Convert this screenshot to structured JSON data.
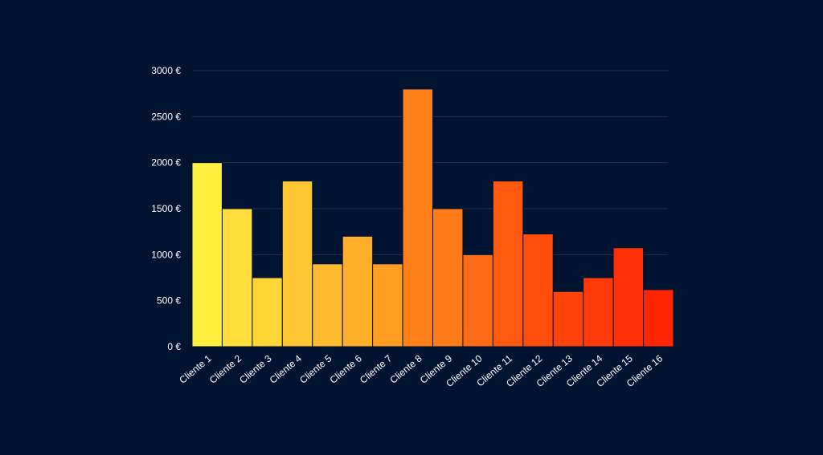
{
  "colors": {
    "background": "#001330",
    "gridline": "#1f3350",
    "text": "#ffffff",
    "bar_border": "#001330"
  },
  "chart_data": {
    "type": "bar",
    "title": "",
    "xlabel": "",
    "ylabel": "",
    "ylim": [
      0,
      3000
    ],
    "yticks": [
      0,
      500,
      1000,
      1500,
      2000,
      2500,
      3000
    ],
    "ytick_labels": [
      "0 €",
      "500 €",
      "1000 €",
      "1500 €",
      "2000 €",
      "2500 €",
      "3000 €"
    ],
    "grid": true,
    "legend": "none",
    "categories": [
      "Cliente 1",
      "Cliente 2",
      "Cliente 3",
      "Cliente 4",
      "Cliente 5",
      "Cliente 6",
      "Cliente 7",
      "Cliente 8",
      "Cliente 9",
      "Cliente 10",
      "Cliente 11",
      "Cliente 12",
      "Cliente 13",
      "Cliente 14",
      "Cliente 15",
      "Cliente 16"
    ],
    "values": [
      2000,
      1500,
      750,
      1800,
      900,
      1200,
      900,
      2800,
      1500,
      1000,
      1800,
      1225,
      600,
      750,
      1075,
      620
    ],
    "bar_colors": [
      "#ffef3f",
      "#ffdd3a",
      "#ffd435",
      "#ffc633",
      "#ffbb2f",
      "#ffae2a",
      "#ff9e23",
      "#ff7f18",
      "#ff7a18",
      "#ff6a14",
      "#ff5a0f",
      "#ff4d0c",
      "#ff420a",
      "#ff3a08",
      "#ff3006",
      "#ff2402"
    ]
  }
}
